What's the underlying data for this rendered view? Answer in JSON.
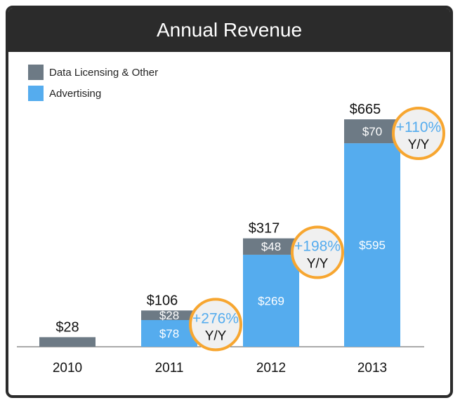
{
  "chart_data": {
    "type": "bar",
    "title": "Annual Revenue",
    "categories": [
      "2010",
      "2011",
      "2012",
      "2013"
    ],
    "series": [
      {
        "name": "Advertising",
        "values": [
          0,
          78,
          269,
          595
        ],
        "color": "#55acee",
        "labels": [
          "",
          "$78",
          "$269",
          "$595"
        ]
      },
      {
        "name": "Data Licensing & Other",
        "values": [
          28,
          28,
          48,
          70
        ],
        "color": "#6d7a85",
        "labels": [
          "",
          "$28",
          "$48",
          "$70"
        ]
      }
    ],
    "totals": [
      28,
      106,
      317,
      665
    ],
    "total_labels": [
      "$28",
      "$106",
      "$317",
      "$665"
    ],
    "growth": [
      null,
      "+276%",
      "+198%",
      "+110%"
    ],
    "growth_suffix": "Y/Y",
    "legend": [
      {
        "label": "Data Licensing & Other",
        "color": "#6d7a85"
      },
      {
        "label": "Advertising",
        "color": "#55acee"
      }
    ],
    "legend_position": "top-left",
    "ylim": [
      0,
      700
    ],
    "grid": false,
    "colors": {
      "frame": "#2b2b2b",
      "circle": "#f7a630",
      "growth_text": "#55acee",
      "circle_fill": "#f0f0f0"
    }
  }
}
